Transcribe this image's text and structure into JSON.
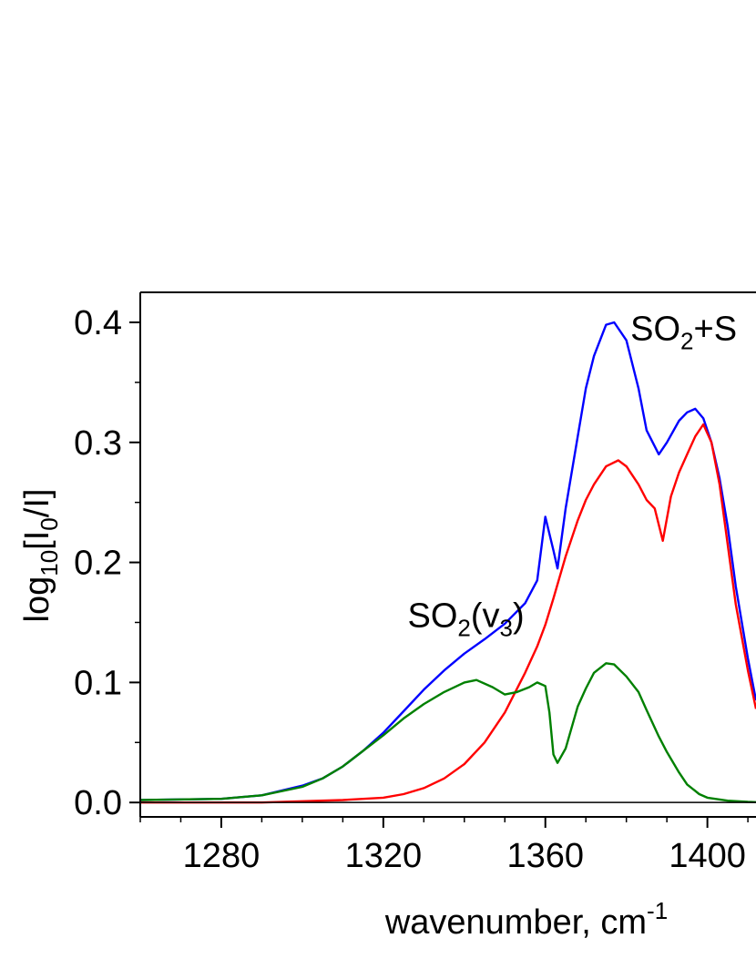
{
  "chart_data": {
    "type": "line",
    "xlabel_parts": {
      "base": "wavenumber, cm",
      "sup": "-1"
    },
    "ylabel_parts": {
      "a": "log",
      "a_sub": "10",
      "b": "[I",
      "b_sub": "0",
      "c": "/I]"
    },
    "xlim": [
      1260,
      1412
    ],
    "ylim": [
      -0.012,
      0.425
    ],
    "x_ticks": [
      1280,
      1320,
      1360,
      1400
    ],
    "x_tick_labels": [
      "1280",
      "1320",
      "1360",
      "1400"
    ],
    "y_ticks": [
      0.0,
      0.1,
      0.2,
      0.3,
      0.4
    ],
    "y_tick_labels": [
      "0.0",
      "0.1",
      "0.2",
      "0.3",
      "0.4"
    ],
    "annotations": [
      {
        "id": "so2-v3",
        "base": "SO",
        "sub1": "2",
        "mid": "(v",
        "sub2": "3",
        "end": ")",
        "x": 1326,
        "y": 0.146
      },
      {
        "id": "so2-plus",
        "base": "SO",
        "sub1": "2",
        "mid": "+S",
        "sub2": "",
        "end": "",
        "x": 1381,
        "y": 0.385
      }
    ],
    "series": [
      {
        "color": "#0000ff",
        "x": [
          1260,
          1280,
          1290,
          1300,
          1305,
          1310,
          1315,
          1320,
          1325,
          1330,
          1335,
          1340,
          1345,
          1350,
          1355,
          1358,
          1360,
          1362,
          1363,
          1365,
          1368,
          1370,
          1372,
          1375,
          1377,
          1380,
          1383,
          1385,
          1388,
          1390,
          1393,
          1395,
          1397,
          1399,
          1401,
          1403,
          1405,
          1407,
          1410,
          1412
        ],
        "y": [
          0.002,
          0.003,
          0.006,
          0.014,
          0.02,
          0.03,
          0.043,
          0.058,
          0.076,
          0.094,
          0.11,
          0.124,
          0.136,
          0.149,
          0.166,
          0.185,
          0.238,
          0.21,
          0.195,
          0.245,
          0.305,
          0.345,
          0.372,
          0.398,
          0.4,
          0.385,
          0.345,
          0.31,
          0.29,
          0.3,
          0.318,
          0.325,
          0.328,
          0.32,
          0.3,
          0.27,
          0.23,
          0.18,
          0.12,
          0.085
        ]
      },
      {
        "color": "#ff0000",
        "x": [
          1260,
          1290,
          1310,
          1320,
          1325,
          1330,
          1335,
          1340,
          1345,
          1350,
          1355,
          1358,
          1360,
          1362,
          1365,
          1368,
          1370,
          1372,
          1375,
          1378,
          1380,
          1383,
          1385,
          1387,
          1389,
          1391,
          1393,
          1395,
          1397,
          1399,
          1401,
          1403,
          1405,
          1407,
          1410,
          1412
        ],
        "y": [
          0.0,
          0.0,
          0.002,
          0.004,
          0.007,
          0.012,
          0.02,
          0.032,
          0.05,
          0.075,
          0.108,
          0.13,
          0.148,
          0.17,
          0.205,
          0.235,
          0.252,
          0.265,
          0.28,
          0.285,
          0.28,
          0.265,
          0.252,
          0.245,
          0.218,
          0.255,
          0.275,
          0.29,
          0.305,
          0.315,
          0.3,
          0.265,
          0.215,
          0.165,
          0.11,
          0.078
        ]
      },
      {
        "color": "#008000",
        "x": [
          1260,
          1280,
          1290,
          1300,
          1305,
          1310,
          1315,
          1320,
          1325,
          1330,
          1335,
          1340,
          1343,
          1347,
          1350,
          1353,
          1356,
          1358,
          1360,
          1361,
          1362,
          1363,
          1365,
          1368,
          1370,
          1372,
          1375,
          1377,
          1380,
          1383,
          1385,
          1388,
          1390,
          1393,
          1395,
          1398,
          1400,
          1405,
          1410,
          1412
        ],
        "y": [
          0.002,
          0.003,
          0.006,
          0.013,
          0.02,
          0.03,
          0.043,
          0.056,
          0.07,
          0.082,
          0.092,
          0.1,
          0.102,
          0.096,
          0.09,
          0.092,
          0.096,
          0.1,
          0.097,
          0.075,
          0.04,
          0.033,
          0.045,
          0.08,
          0.095,
          0.108,
          0.116,
          0.115,
          0.105,
          0.092,
          0.077,
          0.055,
          0.042,
          0.025,
          0.015,
          0.007,
          0.004,
          0.0015,
          0.0005,
          0.0003
        ]
      }
    ]
  }
}
